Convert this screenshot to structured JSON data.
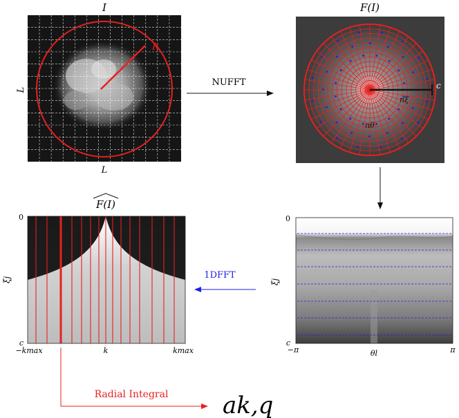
{
  "panels": {
    "image": {
      "title": "I",
      "radius_label": "R",
      "side_left": "L",
      "side_bottom": "L"
    },
    "fourier": {
      "title": "F(I)",
      "c_label": "c",
      "n_xi": "nξ",
      "n_theta": "nθ"
    },
    "polar": {
      "ylabel": "ξj",
      "y_top": "0",
      "y_bottom": "c",
      "x_left": "−π",
      "x_mid": "θl",
      "x_right": "π"
    },
    "angular": {
      "title": "F(I)",
      "ylabel": "ξj",
      "y_top": "0",
      "y_bottom": "c",
      "x_left": "−kmax",
      "x_mid": "k",
      "x_right": "kmax"
    }
  },
  "arrows": {
    "nufft": "NUFFT",
    "dfft": "1DFFT",
    "radial": "Radial Integral",
    "result": "ak,q"
  },
  "colors": {
    "red": "#e8201e",
    "blue": "#1e1ee8",
    "black": "#111111"
  }
}
